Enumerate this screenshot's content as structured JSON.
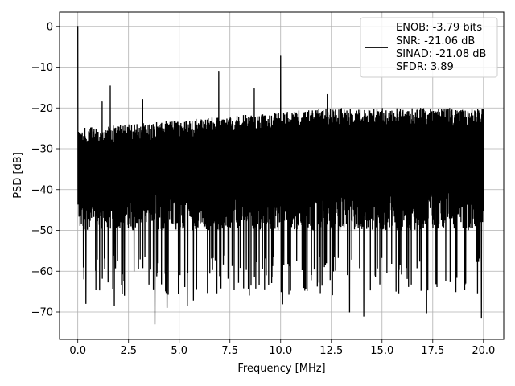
{
  "chart_data": {
    "type": "line",
    "title": "",
    "xlabel": "Frequency [MHz]",
    "ylabel": "PSD [dB]",
    "xlim": [
      -0.9,
      21.0
    ],
    "ylim": [
      -76.7,
      3.5
    ],
    "xticks": [
      0.0,
      2.5,
      5.0,
      7.5,
      10.0,
      12.5,
      15.0,
      17.5,
      20.0
    ],
    "xtick_labels": [
      "0.0",
      "2.5",
      "5.0",
      "7.5",
      "10.0",
      "12.5",
      "15.0",
      "17.5",
      "20.0"
    ],
    "yticks": [
      0,
      -10,
      -20,
      -30,
      -40,
      -50,
      -60,
      -70
    ],
    "ytick_labels": [
      "0",
      "−10",
      "−20",
      "−30",
      "−40",
      "−50",
      "−60",
      "−70"
    ],
    "grid": true,
    "line_color": "#000000",
    "legend": {
      "placement": "top-right",
      "entries": [
        "ENOB: -3.79 bits",
        "SNR: -21.06 dB",
        "SINAD: -21.08 dB",
        "SFDR: 3.89"
      ]
    },
    "noise": {
      "x_range": [
        0.0,
        20.0
      ],
      "upper_envelope_start": -25,
      "upper_envelope_end": -20,
      "dense_low": -50,
      "floor_low": -66
    },
    "peaks": [
      {
        "x": 0.0,
        "y": 0
      },
      {
        "x": 1.2,
        "y": -18.5
      },
      {
        "x": 1.6,
        "y": -14.6
      },
      {
        "x": 3.2,
        "y": -17.9
      },
      {
        "x": 6.95,
        "y": -11.0
      },
      {
        "x": 8.7,
        "y": -15.3
      },
      {
        "x": 10.0,
        "y": -7.3
      },
      {
        "x": 12.3,
        "y": -16.7
      }
    ],
    "dips": [
      {
        "x": 0.3,
        "y": -62
      },
      {
        "x": 0.4,
        "y": -68
      },
      {
        "x": 1.8,
        "y": -68.6
      },
      {
        "x": 2.3,
        "y": -66
      },
      {
        "x": 3.8,
        "y": -73
      },
      {
        "x": 4.4,
        "y": -69
      },
      {
        "x": 5.4,
        "y": -68.6
      },
      {
        "x": 5.7,
        "y": -67.2
      },
      {
        "x": 10.1,
        "y": -68.1
      },
      {
        "x": 13.4,
        "y": -70.1
      },
      {
        "x": 14.1,
        "y": -71.1
      },
      {
        "x": 17.2,
        "y": -70.3
      },
      {
        "x": 19.9,
        "y": -71.6
      }
    ]
  }
}
